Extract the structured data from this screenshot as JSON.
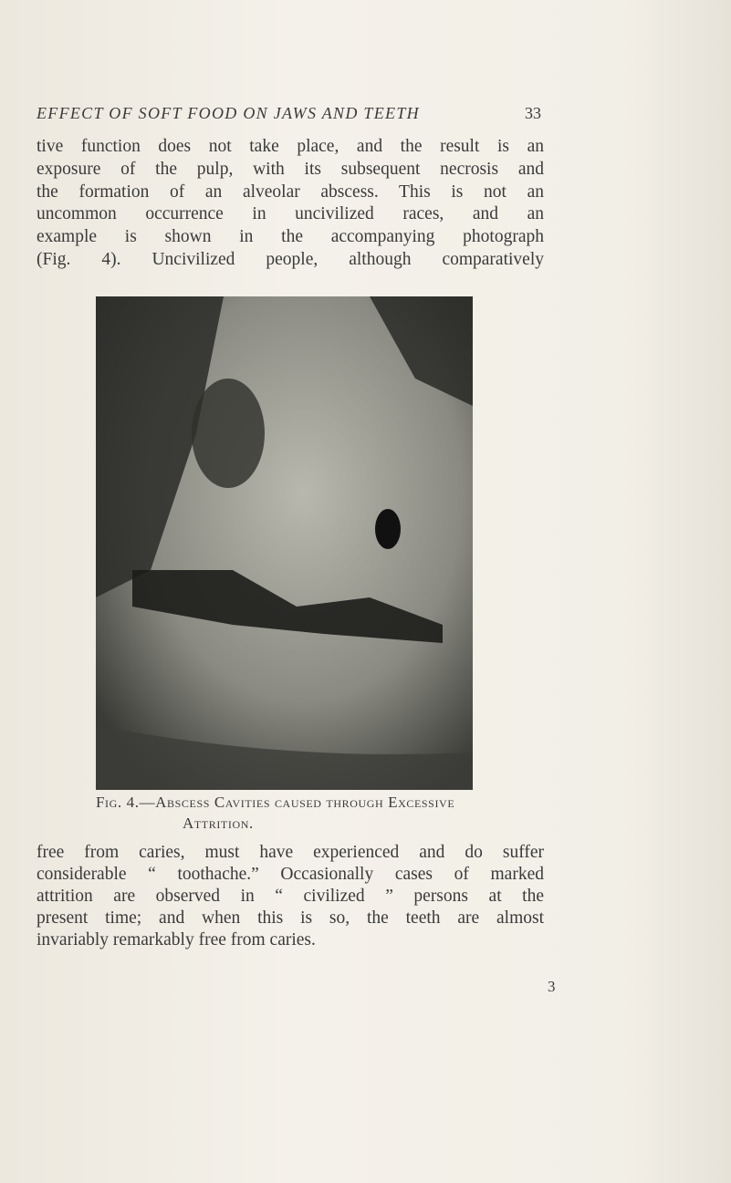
{
  "header": {
    "title": "EFFECT OF SOFT FOOD ON JAWS AND TEETH",
    "page_number": "33"
  },
  "paragraph_1": {
    "lines": [
      "tive function does not take place, and the result is an",
      "exposure of the pulp, with its subsequent necrosis and",
      "the formation of an alveolar abscess. This is not an",
      "uncommon occurrence in uncivilized races, and an",
      "example is shown in the accompanying photograph",
      "(Fig. 4). Uncivilized people, although comparatively"
    ]
  },
  "figure": {
    "caption": [
      "Fig. 4.—Abscess Cavities caused through Excessive",
      "Attrition."
    ]
  },
  "paragraph_2": {
    "lines": [
      "free from caries, must have experienced and do suffer",
      "considerable “ toothache.” Occasionally cases of marked",
      "attrition are observed in “ civilized ” persons at the",
      "present time; and when this is so, the teeth are almost",
      "invariably remarkably free from caries."
    ]
  },
  "signature": "3"
}
